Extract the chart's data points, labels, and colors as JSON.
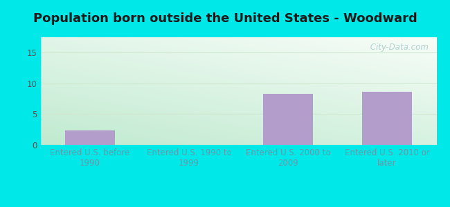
{
  "title": "Population born outside the United States - Woodward",
  "categories": [
    "Entered U.S. before\n1990",
    "Entered U.S. 1990 to\n1999",
    "Entered U.S. 2000 to\n2009",
    "Entered U.S. 2010 or\nlater"
  ],
  "values": [
    2.3,
    0,
    8.3,
    8.6
  ],
  "bar_color": "#b39dca",
  "ylim": [
    0,
    17.5
  ],
  "yticks": [
    0,
    5,
    10,
    15
  ],
  "background_outer": "#00e8e8",
  "background_inner_topleft": "#d6f0d8",
  "background_inner_topright": "#f0f8f0",
  "background_inner_bottomleft": "#c8eecc",
  "background_inner_bottomright": "#e8f5ea",
  "grid_color": "#d0e8d0",
  "title_fontsize": 13,
  "tick_label_fontsize": 8.5,
  "xlabel_color": "#6699aa",
  "ylabel_color": "#555555",
  "watermark_text": " City-Data.com",
  "watermark_color": "#aacccc"
}
